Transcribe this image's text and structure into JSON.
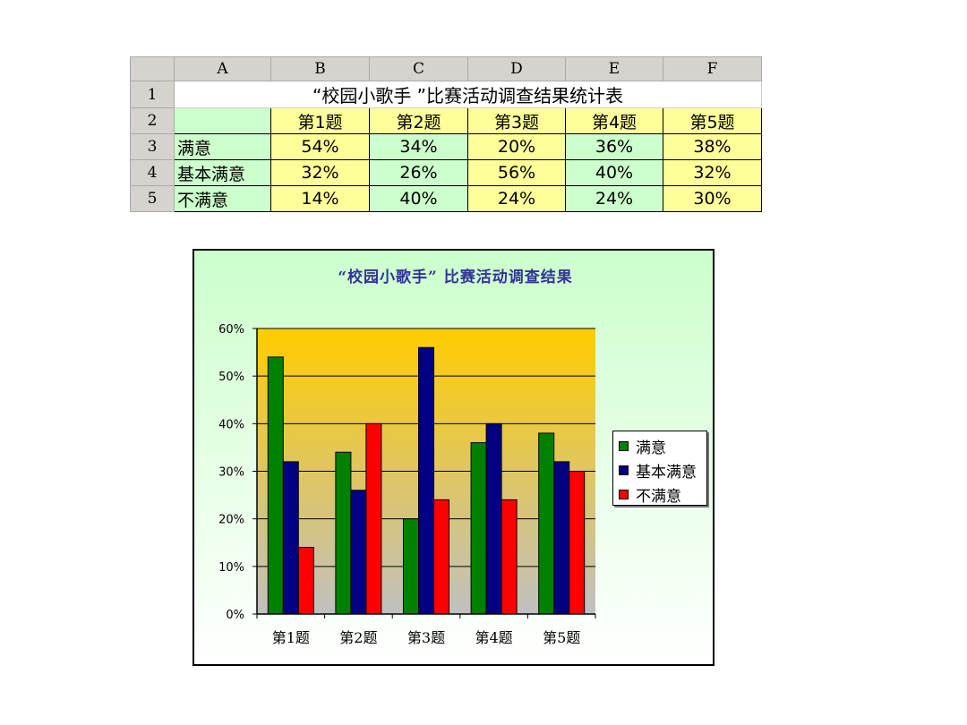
{
  "sheet": {
    "col_headers": [
      "A",
      "B",
      "C",
      "D",
      "E",
      "F"
    ],
    "row_numbers": [
      "1",
      "2",
      "3",
      "4",
      "5"
    ],
    "title": "“校园小歌手 ”比赛活动调查结果统计表",
    "questions": [
      "第1题",
      "第2题",
      "第3题",
      "第4题",
      "第5题"
    ],
    "rows": [
      {
        "label": "满意",
        "values": [
          "54%",
          "34%",
          "20%",
          "36%",
          "38%"
        ]
      },
      {
        "label": "基本满意",
        "values": [
          "32%",
          "26%",
          "56%",
          "40%",
          "32%"
        ]
      },
      {
        "label": "不满意",
        "values": [
          "14%",
          "40%",
          "24%",
          "24%",
          "30%"
        ]
      }
    ]
  },
  "chart_data": {
    "type": "bar",
    "title": "“校园小歌手” 比赛活动调查结果",
    "categories": [
      "第1题",
      "第2题",
      "第3题",
      "第4题",
      "第5题"
    ],
    "series": [
      {
        "name": "满意",
        "values": [
          54,
          34,
          20,
          36,
          38
        ],
        "color": "#008000"
      },
      {
        "name": "基本满意",
        "values": [
          32,
          26,
          56,
          40,
          32
        ],
        "color": "#000080"
      },
      {
        "name": "不满意",
        "values": [
          14,
          40,
          24,
          24,
          30
        ],
        "color": "#ff0000"
      }
    ],
    "ylim": [
      0,
      60
    ],
    "yticks": [
      0,
      10,
      20,
      30,
      40,
      50,
      60
    ],
    "ytick_labels": [
      "0%",
      "10%",
      "20%",
      "30%",
      "40%",
      "50%",
      "60%"
    ],
    "xlabel": "",
    "ylabel": "",
    "grid": true,
    "legend": "right",
    "plot_background": [
      "#ffcc00",
      "#c0c0c0"
    ]
  }
}
